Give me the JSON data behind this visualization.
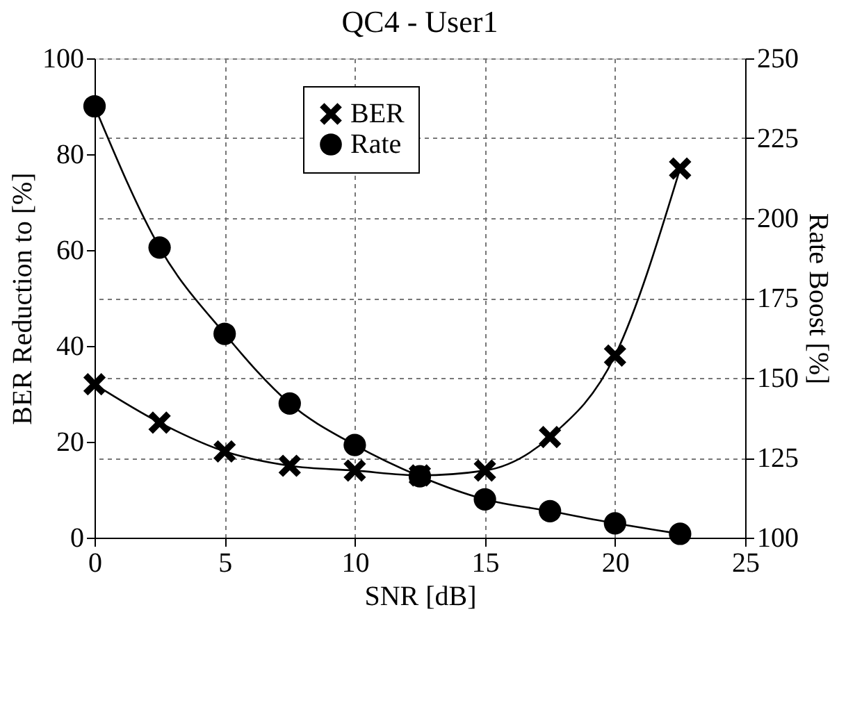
{
  "chart_data": {
    "type": "line",
    "title": "QC4 - User1",
    "xlabel": "SNR [dB]",
    "ylabel": "BER Reduction to [%]",
    "y2label": "Rate Boost [%]",
    "x": [
      0,
      2.5,
      5,
      7.5,
      10,
      12.5,
      15,
      17.5,
      20,
      22.5
    ],
    "series": [
      {
        "name": "BER",
        "color": "#000000",
        "marker": "cross",
        "values": [
          32,
          24,
          18,
          15,
          14,
          13,
          14,
          21,
          38,
          77
        ]
      },
      {
        "name": "Rate",
        "color": "#000000",
        "marker": "circle",
        "axis": "y2",
        "values": [
          235,
          190.8,
          163.8,
          142,
          129,
          119.2,
          112,
          108.3,
          104.5,
          101.2
        ]
      }
    ],
    "xlim": [
      0,
      25
    ],
    "xticks": [
      0,
      5,
      10,
      15,
      20,
      25
    ],
    "ylim": [
      0,
      100
    ],
    "yticks": [
      0,
      20,
      40,
      60,
      80,
      100
    ],
    "y2lim": [
      100,
      250
    ],
    "y2ticks": [
      100,
      125,
      150,
      175,
      200,
      225,
      250
    ],
    "grid": true,
    "legend": "top",
    "line_style": "solid"
  }
}
